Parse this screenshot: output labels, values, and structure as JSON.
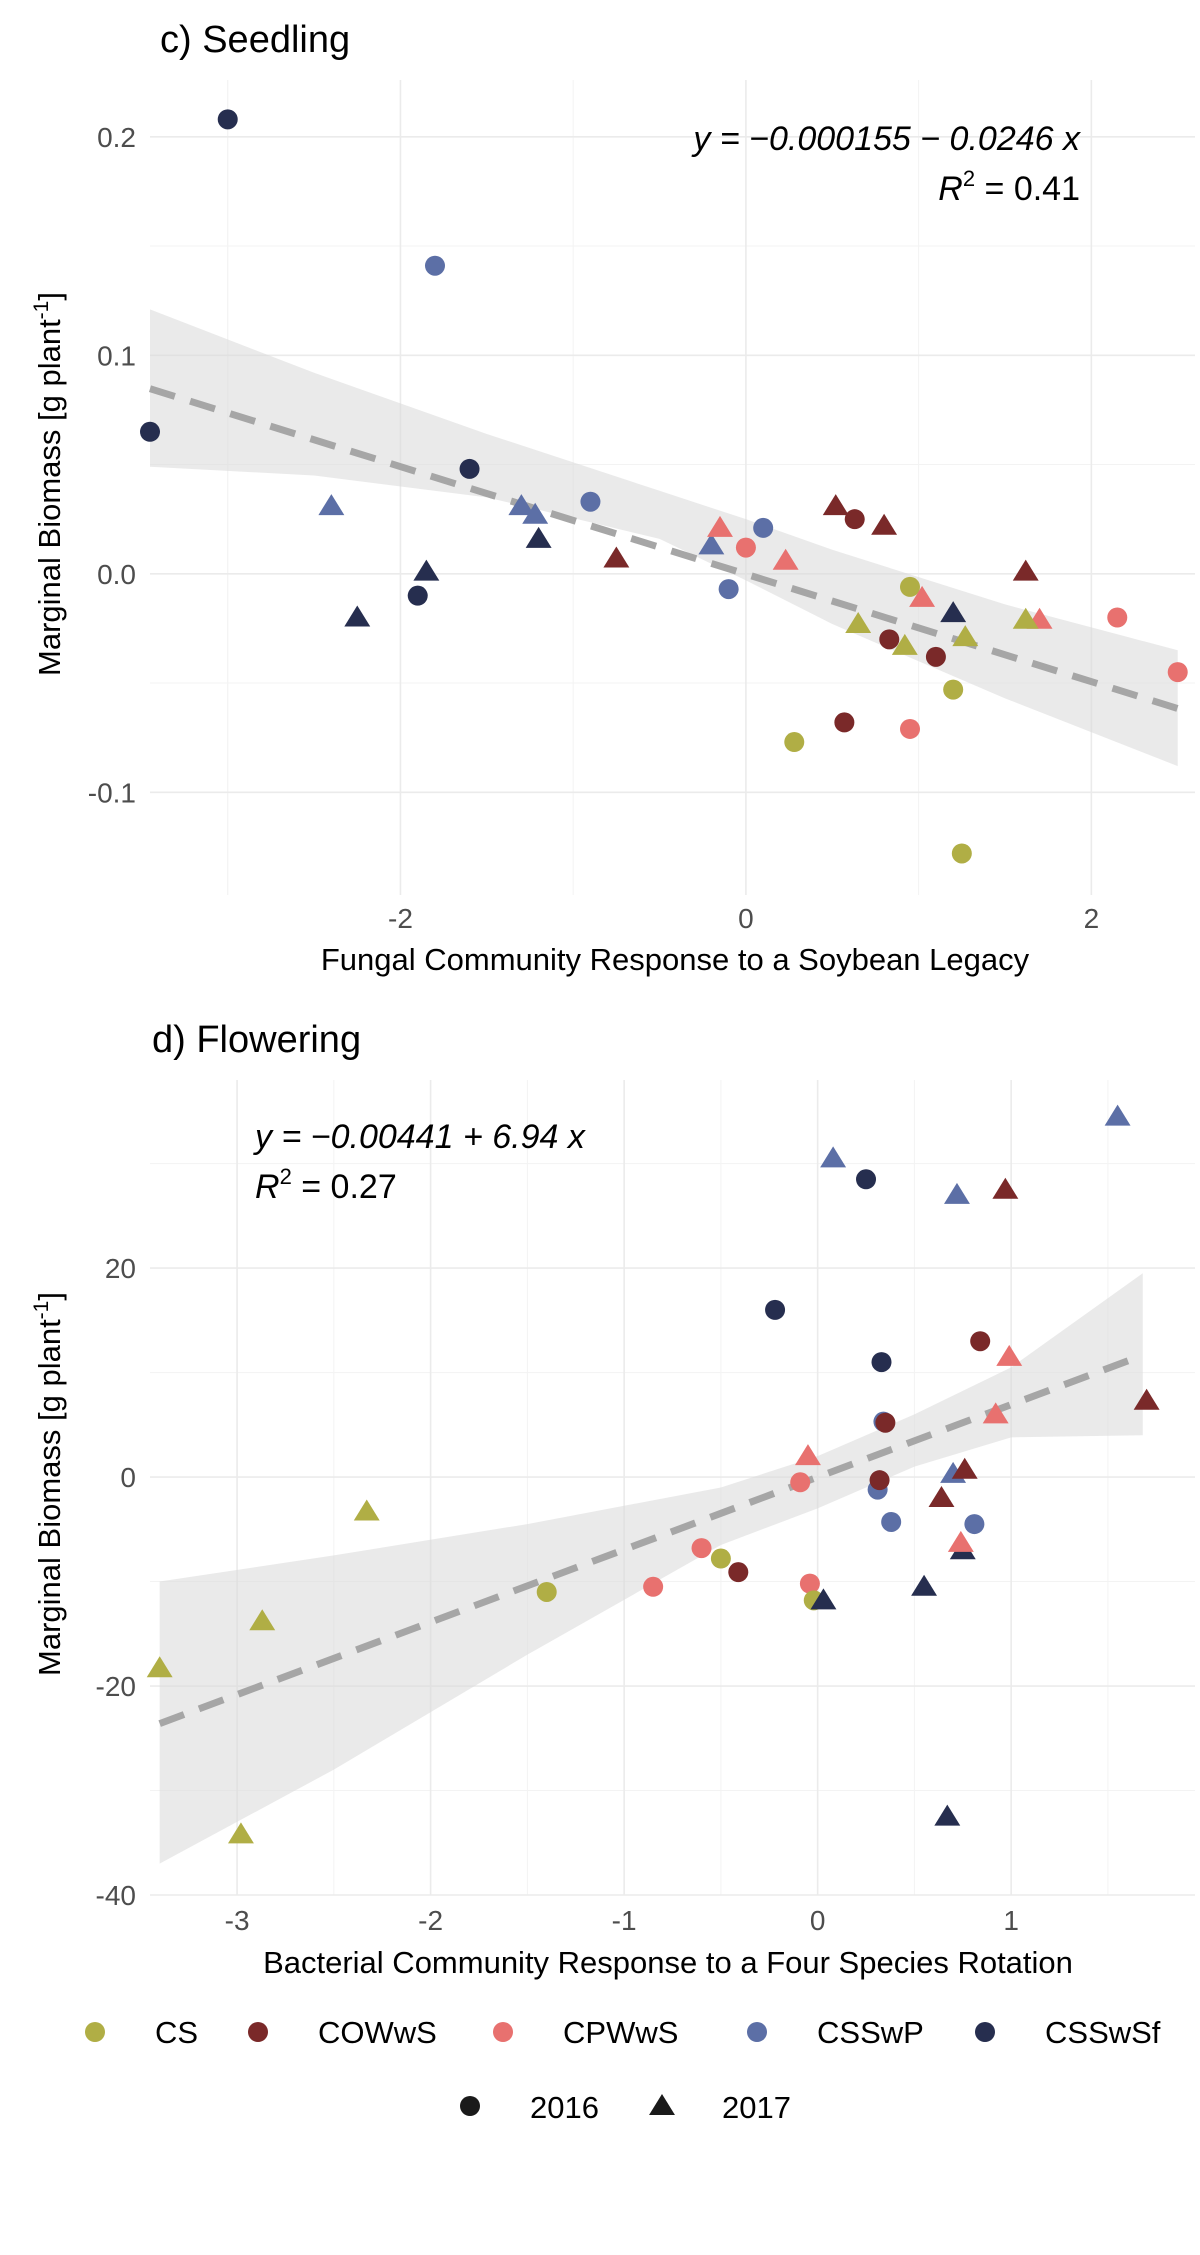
{
  "chart_data": [
    {
      "type": "scatter",
      "title": "c) Seedling",
      "xlabel": "Fungal Community Response to a Soybean Legacy",
      "ylabel": "Marginal Biomass [g plant",
      "ylabel_sup": "-1",
      "ylabel_end": "]",
      "equation": "y = −0.000155 − 0.0246 x",
      "r2_label": "R",
      "r2_sup": "2",
      "r2_value": " = 0.41",
      "xlim": [
        -3.45,
        2.6
      ],
      "ylim": [
        -0.147,
        0.226
      ],
      "xticks": [
        -2,
        0,
        2
      ],
      "yticks": [
        -0.1,
        0.0,
        0.1,
        0.2
      ],
      "ytick_labels": [
        "-0.1",
        "0.0",
        "0.1",
        "0.2"
      ],
      "fit": {
        "intercept": -0.000155,
        "slope": -0.0246,
        "x_range": [
          -3.45,
          2.5
        ]
      },
      "ci_band": {
        "x": [
          -3.45,
          -2.5,
          -1.5,
          -0.5,
          0.0,
          0.5,
          1.5,
          2.5
        ],
        "upper": [
          0.121,
          0.092,
          0.064,
          0.038,
          0.025,
          0.011,
          -0.014,
          -0.035
        ],
        "lower": [
          0.049,
          0.045,
          0.035,
          0.016,
          -0.003,
          -0.023,
          -0.057,
          -0.088
        ]
      },
      "points": [
        {
          "group": "CSSwSf",
          "year": "2016",
          "x": -3.0,
          "y": 0.208
        },
        {
          "group": "CSSwP",
          "year": "2016",
          "x": -1.8,
          "y": 0.141
        },
        {
          "group": "CSSwSf",
          "year": "2016",
          "x": -3.45,
          "y": 0.065
        },
        {
          "group": "CSSwSf",
          "year": "2016",
          "x": -1.6,
          "y": 0.048
        },
        {
          "group": "CSSwP",
          "year": "2016",
          "x": -0.9,
          "y": 0.033
        },
        {
          "group": "CSSwP",
          "year": "2016",
          "x": 0.1,
          "y": 0.021
        },
        {
          "group": "CSSwP",
          "year": "2016",
          "x": -0.1,
          "y": -0.007
        },
        {
          "group": "CSSwSf",
          "year": "2016",
          "x": -1.9,
          "y": -0.01
        },
        {
          "group": "COWwS",
          "year": "2016",
          "x": 0.63,
          "y": 0.025
        },
        {
          "group": "COWwS",
          "year": "2016",
          "x": 0.83,
          "y": -0.03
        },
        {
          "group": "COWwS",
          "year": "2016",
          "x": 1.1,
          "y": -0.038
        },
        {
          "group": "COWwS",
          "year": "2016",
          "x": 0.57,
          "y": -0.068
        },
        {
          "group": "CPWwS",
          "year": "2016",
          "x": 0.0,
          "y": 0.012
        },
        {
          "group": "CPWwS",
          "year": "2016",
          "x": 2.15,
          "y": -0.02
        },
        {
          "group": "CPWwS",
          "year": "2016",
          "x": 2.5,
          "y": -0.045
        },
        {
          "group": "CPWwS",
          "year": "2016",
          "x": 0.95,
          "y": -0.071
        },
        {
          "group": "CS",
          "year": "2016",
          "x": 0.95,
          "y": -0.006
        },
        {
          "group": "CS",
          "year": "2016",
          "x": 1.2,
          "y": -0.053
        },
        {
          "group": "CS",
          "year": "2016",
          "x": 0.28,
          "y": -0.077
        },
        {
          "group": "CS",
          "year": "2016",
          "x": 1.25,
          "y": -0.128
        },
        {
          "group": "CSSwP",
          "year": "2017",
          "x": -2.4,
          "y": 0.031
        },
        {
          "group": "CSSwP",
          "year": "2017",
          "x": -1.3,
          "y": 0.031
        },
        {
          "group": "CSSwP",
          "year": "2017",
          "x": -1.22,
          "y": 0.027
        },
        {
          "group": "CSSwP",
          "year": "2017",
          "x": -0.2,
          "y": 0.013
        },
        {
          "group": "CSSwSf",
          "year": "2017",
          "x": -1.2,
          "y": 0.016
        },
        {
          "group": "CSSwSf",
          "year": "2017",
          "x": -1.85,
          "y": 0.001
        },
        {
          "group": "CSSwSf",
          "year": "2017",
          "x": -2.25,
          "y": -0.02
        },
        {
          "group": "CSSwSf",
          "year": "2017",
          "x": 1.2,
          "y": -0.018
        },
        {
          "group": "COWwS",
          "year": "2017",
          "x": -0.75,
          "y": 0.007
        },
        {
          "group": "COWwS",
          "year": "2017",
          "x": 0.52,
          "y": 0.031
        },
        {
          "group": "COWwS",
          "year": "2017",
          "x": 0.8,
          "y": 0.022
        },
        {
          "group": "COWwS",
          "year": "2017",
          "x": 1.62,
          "y": 0.001
        },
        {
          "group": "CPWwS",
          "year": "2017",
          "x": -0.15,
          "y": 0.021
        },
        {
          "group": "CPWwS",
          "year": "2017",
          "x": 0.23,
          "y": 0.006
        },
        {
          "group": "CPWwS",
          "year": "2017",
          "x": 1.02,
          "y": -0.011
        },
        {
          "group": "CPWwS",
          "year": "2017",
          "x": 1.7,
          "y": -0.021
        },
        {
          "group": "CS",
          "year": "2017",
          "x": 0.65,
          "y": -0.023
        },
        {
          "group": "CS",
          "year": "2017",
          "x": 0.92,
          "y": -0.033
        },
        {
          "group": "CS",
          "year": "2017",
          "x": 1.27,
          "y": -0.029
        },
        {
          "group": "CS",
          "year": "2017",
          "x": 1.62,
          "y": -0.021
        }
      ]
    },
    {
      "type": "scatter",
      "title": "d) Flowering",
      "xlabel": "Bacterial Community Response to a Four Species Rotation",
      "ylabel": "Marginal Biomass [g plant",
      "ylabel_sup": "-1",
      "ylabel_end": "]",
      "equation": "y = −0.00441 + 6.94 x",
      "r2_label": "R",
      "r2_sup": "2",
      "r2_value": " = 0.27",
      "xlim": [
        -3.45,
        1.95
      ],
      "ylim": [
        -40,
        38
      ],
      "xticks": [
        -3,
        -2,
        -1,
        0,
        1
      ],
      "yticks": [
        -40,
        -20,
        0,
        20
      ],
      "ytick_labels": [
        "-40",
        "-20",
        "0",
        "20"
      ],
      "fit": {
        "intercept": -0.00441,
        "slope": 6.94,
        "x_range": [
          -3.4,
          1.68
        ]
      },
      "ci_band": {
        "x": [
          -3.4,
          -2.5,
          -1.5,
          -0.5,
          0.0,
          0.5,
          1.0,
          1.68
        ],
        "upper": [
          -10,
          -7.5,
          -4.5,
          -1,
          2,
          6,
          10.5,
          19.5
        ],
        "lower": [
          -37,
          -28,
          -17,
          -6.5,
          -3,
          1,
          3.8,
          4
        ]
      },
      "points": [
        {
          "group": "CSSwSf",
          "year": "2016",
          "x": 0.25,
          "y": 28.5
        },
        {
          "group": "CSSwSf",
          "year": "2016",
          "x": -0.22,
          "y": 16
        },
        {
          "group": "CSSwSf",
          "year": "2016",
          "x": 0.33,
          "y": 11
        },
        {
          "group": "CSSwP",
          "year": "2016",
          "x": 0.34,
          "y": 5.3
        },
        {
          "group": "CSSwP",
          "year": "2016",
          "x": 0.31,
          "y": -1.2
        },
        {
          "group": "CSSwP",
          "year": "2016",
          "x": 0.38,
          "y": -4.3
        },
        {
          "group": "CSSwP",
          "year": "2016",
          "x": 0.81,
          "y": -4.5
        },
        {
          "group": "COWwS",
          "year": "2016",
          "x": 0.84,
          "y": 13
        },
        {
          "group": "COWwS",
          "year": "2016",
          "x": 0.35,
          "y": 5.2
        },
        {
          "group": "COWwS",
          "year": "2016",
          "x": 0.32,
          "y": -0.3
        },
        {
          "group": "COWwS",
          "year": "2016",
          "x": -0.41,
          "y": -9.1
        },
        {
          "group": "CPWwS",
          "year": "2016",
          "x": -0.09,
          "y": -0.5
        },
        {
          "group": "CPWwS",
          "year": "2016",
          "x": -0.6,
          "y": -6.8
        },
        {
          "group": "CPWwS",
          "year": "2016",
          "x": -0.85,
          "y": -10.5
        },
        {
          "group": "CPWwS",
          "year": "2016",
          "x": -0.04,
          "y": -10.2
        },
        {
          "group": "CS",
          "year": "2016",
          "x": -0.5,
          "y": -7.8
        },
        {
          "group": "CS",
          "year": "2016",
          "x": -1.4,
          "y": -11
        },
        {
          "group": "CS",
          "year": "2016",
          "x": -0.02,
          "y": -11.8
        },
        {
          "group": "CSSwP",
          "year": "2017",
          "x": 0.08,
          "y": 30.5
        },
        {
          "group": "CSSwP",
          "year": "2017",
          "x": 0.72,
          "y": 27
        },
        {
          "group": "CSSwP",
          "year": "2017",
          "x": 1.55,
          "y": 34.5
        },
        {
          "group": "CSSwP",
          "year": "2017",
          "x": 0.7,
          "y": 0.3
        },
        {
          "group": "CSSwSf",
          "year": "2017",
          "x": 0.03,
          "y": -11.8
        },
        {
          "group": "CSSwSf",
          "year": "2017",
          "x": 0.55,
          "y": -10.5
        },
        {
          "group": "CSSwSf",
          "year": "2017",
          "x": 0.75,
          "y": -7
        },
        {
          "group": "CSSwSf",
          "year": "2017",
          "x": 0.67,
          "y": -32.5
        },
        {
          "group": "COWwS",
          "year": "2017",
          "x": 0.97,
          "y": 27.5
        },
        {
          "group": "COWwS",
          "year": "2017",
          "x": 1.7,
          "y": 7.3
        },
        {
          "group": "COWwS",
          "year": "2017",
          "x": 0.76,
          "y": 0.7
        },
        {
          "group": "COWwS",
          "year": "2017",
          "x": 0.64,
          "y": -2
        },
        {
          "group": "CPWwS",
          "year": "2017",
          "x": 0.99,
          "y": 11.5
        },
        {
          "group": "CPWwS",
          "year": "2017",
          "x": 0.92,
          "y": 6
        },
        {
          "group": "CPWwS",
          "year": "2017",
          "x": -0.05,
          "y": 2
        },
        {
          "group": "CPWwS",
          "year": "2017",
          "x": 0.74,
          "y": -6.3
        },
        {
          "group": "CS",
          "year": "2017",
          "x": -2.33,
          "y": -3.3
        },
        {
          "group": "CS",
          "year": "2017",
          "x": -2.87,
          "y": -13.8
        },
        {
          "group": "CS",
          "year": "2017",
          "x": -3.4,
          "y": -18.3
        },
        {
          "group": "CS",
          "year": "2017",
          "x": -2.98,
          "y": -34.2
        }
      ]
    }
  ],
  "legend": {
    "groups": [
      {
        "label": "CS",
        "color": "#b0ae45"
      },
      {
        "label": "COWwS",
        "color": "#7a2929"
      },
      {
        "label": "CPWwS",
        "color": "#e8716f"
      },
      {
        "label": "CSSwP",
        "color": "#5c6fa6"
      },
      {
        "label": "CSSwSf",
        "color": "#262e4f"
      }
    ],
    "years": [
      {
        "label": "2016",
        "shape": "circle"
      },
      {
        "label": "2017",
        "shape": "triangle"
      }
    ]
  }
}
